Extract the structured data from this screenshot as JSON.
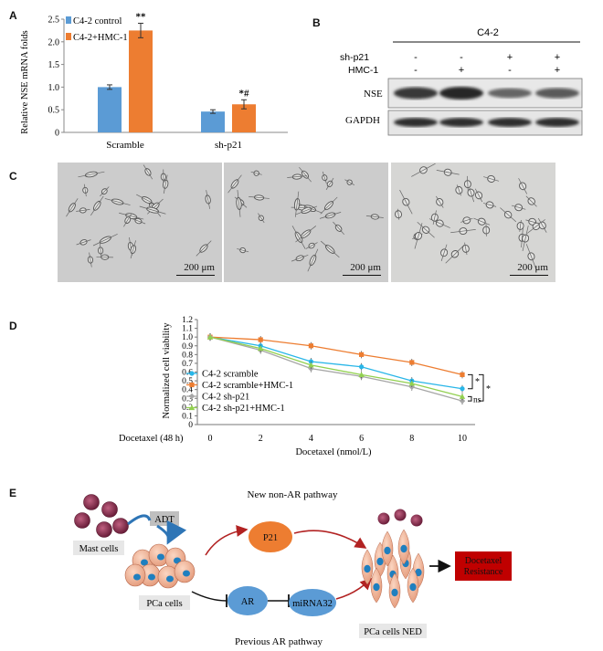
{
  "panels": {
    "A": "A",
    "B": "B",
    "C": "C",
    "D": "D",
    "E": "E"
  },
  "panel_a": {
    "chart_data": {
      "type": "bar",
      "ylabel": "Relative NSE mRNA folds",
      "categories": [
        "Scramble",
        "sh-p21"
      ],
      "ylim": [
        0,
        2.5
      ],
      "yticks": [
        "0",
        "0.5",
        "1.0",
        "1.5",
        "2.0",
        "2.5"
      ],
      "series": [
        {
          "name": "C4-2 control",
          "color": "#5b9bd5",
          "values": [
            1.0,
            0.46
          ],
          "errors": [
            0.05,
            0.04
          ]
        },
        {
          "name": "C4-2+HMC-1",
          "color": "#ed7d31",
          "values": [
            2.25,
            0.62
          ],
          "errors": [
            0.16,
            0.1
          ]
        }
      ],
      "annotations": [
        {
          "category": 1,
          "text": "*#"
        },
        {
          "category": 0,
          "text": "**"
        }
      ],
      "legend": "top-left"
    }
  },
  "panel_b": {
    "group": "C4-2",
    "rows": [
      {
        "label": "sh-p21",
        "signs": [
          "-",
          "-",
          "+",
          "+"
        ]
      },
      {
        "label": "HMC-1",
        "signs": [
          "-",
          "+",
          "-",
          "+"
        ]
      }
    ],
    "blots": [
      "NSE",
      "GAPDH"
    ],
    "nse_intensity": [
      0.85,
      1.0,
      0.45,
      0.55
    ]
  },
  "panel_c": {
    "scale": [
      "200 μm",
      "200 μm",
      "200 μm"
    ]
  },
  "panel_d": {
    "chart_data": {
      "type": "line",
      "ylabel": "Normalized cell viability",
      "xlabel": "Docetaxel (nmol/L)",
      "x_row_label": "Docetaxel (48 h)",
      "x": [
        0,
        2,
        4,
        6,
        8,
        10
      ],
      "xticks": [
        "0",
        "2",
        "4",
        "6",
        "8",
        "10"
      ],
      "ylim": [
        0,
        1.2
      ],
      "yticks": [
        "0",
        "0.1",
        "0.2",
        "0.3",
        "0.4",
        "0.5",
        "0.6",
        "0.7",
        "0.8",
        "0.9",
        "1.0",
        "1.1",
        "1.2"
      ],
      "series": [
        {
          "name": "C4-2 scramble",
          "color": "#29b6e8",
          "marker": "circle",
          "values": [
            1.0,
            0.9,
            0.72,
            0.66,
            0.5,
            0.41
          ]
        },
        {
          "name": "C4-2 scramble+HMC-1",
          "color": "#ed7d31",
          "marker": "square",
          "values": [
            1.0,
            0.97,
            0.9,
            0.8,
            0.71,
            0.57
          ]
        },
        {
          "name": "C4-2 sh-p21",
          "color": "#a6a6a6",
          "marker": "diamond",
          "values": [
            1.0,
            0.85,
            0.64,
            0.55,
            0.43,
            0.27
          ]
        },
        {
          "name": "C4-2 sh-p21+HMC-1",
          "color": "#92d050",
          "marker": "triangle",
          "values": [
            1.0,
            0.87,
            0.68,
            0.57,
            0.47,
            0.32
          ]
        }
      ],
      "annotations": [
        "*",
        "*",
        "ns"
      ],
      "legend": "left-middle"
    }
  },
  "panel_e": {
    "top_label": "New non-AR pathway",
    "bottom_label": "Previous AR pathway",
    "adt": "ADT",
    "mast_cells": "Mast cells",
    "pca_cells": "PCa cells",
    "p21": "P21",
    "ar": "AR",
    "mirna": "miRNA32",
    "ned": "PCa cells NED",
    "resistance_line1": "Docetaxel",
    "resistance_line2": "Resistance",
    "colors": {
      "p21": "#ed7d31",
      "ar": "#5b9bd5",
      "resistance": "#c00000",
      "arrow": "#b22222"
    }
  }
}
